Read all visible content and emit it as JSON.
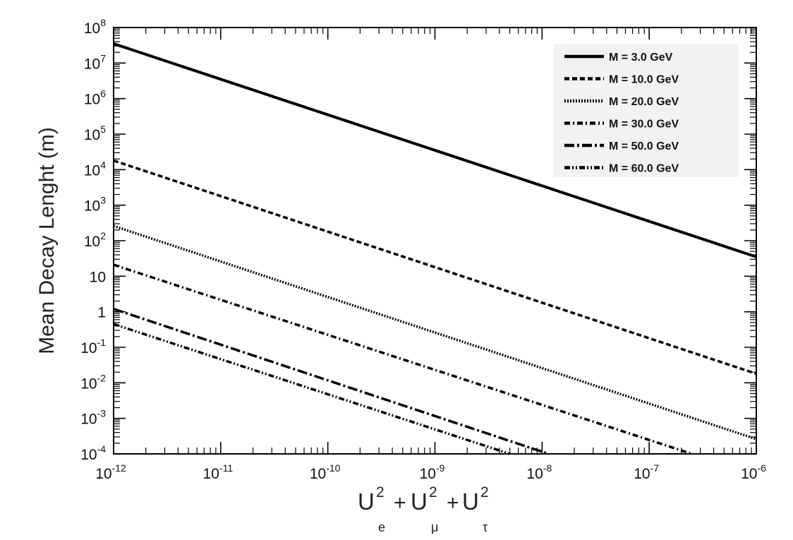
{
  "chart_data": {
    "type": "line",
    "xscale": "log",
    "yscale": "log",
    "xlim": [
      1e-12,
      1e-06
    ],
    "ylim": [
      0.0001,
      100000000.0
    ],
    "xlabel": {
      "base": "U",
      "terms": [
        {
          "exp": "2",
          "sub": "e"
        },
        {
          "exp": "2",
          "sub": "μ"
        },
        {
          "exp": "2",
          "sub": "τ"
        }
      ],
      "separator": "+"
    },
    "ylabel": "Mean Decay Lenght (m)",
    "x_ticks": [
      {
        "value": 1e-12,
        "base": "10",
        "exp": "-12"
      },
      {
        "value": 1e-11,
        "base": "10",
        "exp": "-11"
      },
      {
        "value": 1e-10,
        "base": "10",
        "exp": "-10"
      },
      {
        "value": 1e-09,
        "base": "10",
        "exp": "-9"
      },
      {
        "value": 1e-08,
        "base": "10",
        "exp": "-8"
      },
      {
        "value": 1e-07,
        "base": "10",
        "exp": "-7"
      },
      {
        "value": 1e-06,
        "base": "10",
        "exp": "-6"
      }
    ],
    "y_ticks": [
      {
        "value": 0.0001,
        "base": "10",
        "exp": "-4"
      },
      {
        "value": 0.001,
        "base": "10",
        "exp": "-3"
      },
      {
        "value": 0.01,
        "base": "10",
        "exp": "-2"
      },
      {
        "value": 0.1,
        "base": "10",
        "exp": "-1"
      },
      {
        "value": 1,
        "base": "1",
        "exp": ""
      },
      {
        "value": 10,
        "base": "10",
        "exp": ""
      },
      {
        "value": 100.0,
        "base": "10",
        "exp": "2"
      },
      {
        "value": 1000.0,
        "base": "10",
        "exp": "3"
      },
      {
        "value": 10000.0,
        "base": "10",
        "exp": "4"
      },
      {
        "value": 100000.0,
        "base": "10",
        "exp": "5"
      },
      {
        "value": 1000000.0,
        "base": "10",
        "exp": "6"
      },
      {
        "value": 10000000.0,
        "base": "10",
        "exp": "7"
      },
      {
        "value": 100000000.0,
        "base": "10",
        "exp": "8"
      }
    ],
    "legend_position": "top-right",
    "grid": false,
    "series": [
      {
        "name": "M = 3.0 GeV",
        "style": "solid",
        "x": [
          1e-12,
          1e-06
        ],
        "y": [
          35000000.0,
          35
        ]
      },
      {
        "name": "M = 10.0 GeV",
        "style": "dashed",
        "x": [
          1e-12,
          1e-06
        ],
        "y": [
          18000.0,
          0.018
        ]
      },
      {
        "name": "M = 20.0 GeV",
        "style": "dotted",
        "x": [
          1e-12,
          1e-06
        ],
        "y": [
          260,
          0.00026
        ]
      },
      {
        "name": "M = 30.0 GeV",
        "style": "dash-dot",
        "x": [
          1e-12,
          2.5e-07
        ],
        "y": [
          21,
          0.0001
        ]
      },
      {
        "name": "M = 50.0 GeV",
        "style": "long-dash-dot",
        "x": [
          1e-12,
          1.15e-08
        ],
        "y": [
          1.2,
          0.0001
        ]
      },
      {
        "name": "M = 60.0 GeV",
        "style": "dash-dot-dot",
        "x": [
          1e-12,
          5e-09
        ],
        "y": [
          0.45,
          0.0001
        ]
      }
    ],
    "colors": {
      "line": "#000000",
      "legend_bg": "#f2f2f2",
      "axis": "#000000"
    }
  }
}
